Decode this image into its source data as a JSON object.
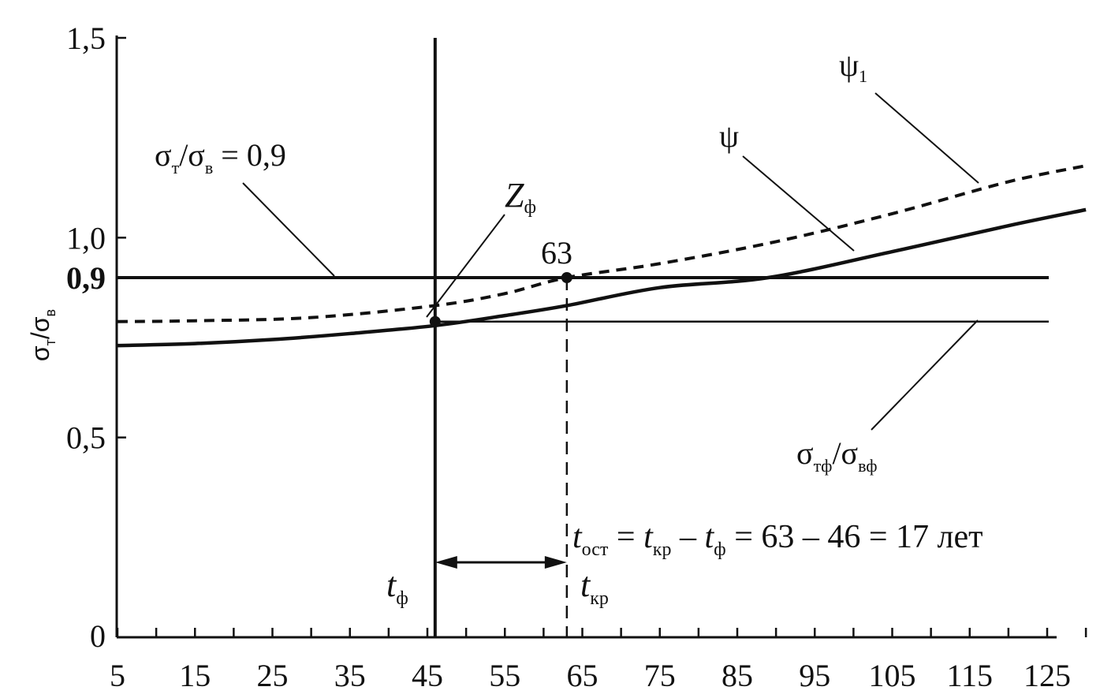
{
  "chart_data": {
    "type": "line",
    "x_ticks": [
      "5",
      "15",
      "25",
      "35",
      "45",
      "55",
      "65",
      "75",
      "85",
      "95",
      "105",
      "115",
      "125"
    ],
    "y_ticks": [
      "0",
      "0,5",
      "1,0",
      "1,5"
    ],
    "xlim": [
      5,
      130
    ],
    "ylim": [
      0,
      1.5
    ],
    "ylabel": {
      "main": "σ",
      "sub1": "т",
      "mid": "/σ",
      "sub2": "в"
    },
    "grid": false,
    "series": [
      {
        "name": "ψ",
        "style": "solid",
        "x": [
          5,
          15,
          25,
          35,
          46,
          55,
          63,
          75,
          89,
          105,
          120,
          130
        ],
        "y": [
          0.73,
          0.735,
          0.745,
          0.76,
          0.78,
          0.805,
          0.83,
          0.875,
          0.9,
          0.965,
          1.03,
          1.07
        ]
      },
      {
        "name": "ψ",
        "sub": "1",
        "style": "dashed",
        "x": [
          5,
          15,
          30,
          46,
          55,
          63,
          75,
          90,
          105,
          120,
          130
        ],
        "y": [
          0.79,
          0.792,
          0.8,
          0.83,
          0.86,
          0.9,
          0.935,
          0.99,
          1.06,
          1.14,
          1.18
        ]
      }
    ],
    "hlines": [
      {
        "y": 0.9,
        "label": "0,9",
        "weight": "bold"
      },
      {
        "y": 0.79,
        "weight": "thin"
      }
    ],
    "vlines": [
      {
        "x": 46,
        "style": "solid",
        "label": "t",
        "sub": "ф"
      },
      {
        "x": 63,
        "style": "dashed",
        "label": "t",
        "sub": "кр"
      }
    ],
    "points": [
      {
        "x": 46,
        "y": 0.79,
        "label": "Z",
        "sub": "ф"
      },
      {
        "x": 63,
        "y": 0.9,
        "label": "63"
      }
    ],
    "annotations": {
      "ratio_09": {
        "main": "σ",
        "sub1": "т",
        "mid": "/σ",
        "sub2": "в",
        "tail": " = 0,9"
      },
      "ratio_f": {
        "main": "σ",
        "sub1": "тф",
        "mid": "/σ",
        "sub2": "вф"
      },
      "formula": {
        "t1": "t",
        "s1": "ост",
        "eq1": " = ",
        "t2": "t",
        "s2": "кр",
        "minus": " – ",
        "t3": "t",
        "s3": "ф",
        "rest": " = 63 – 46 = 17 лет"
      }
    },
    "colors": {
      "ink": "#111111",
      "background": "#ffffff"
    }
  }
}
